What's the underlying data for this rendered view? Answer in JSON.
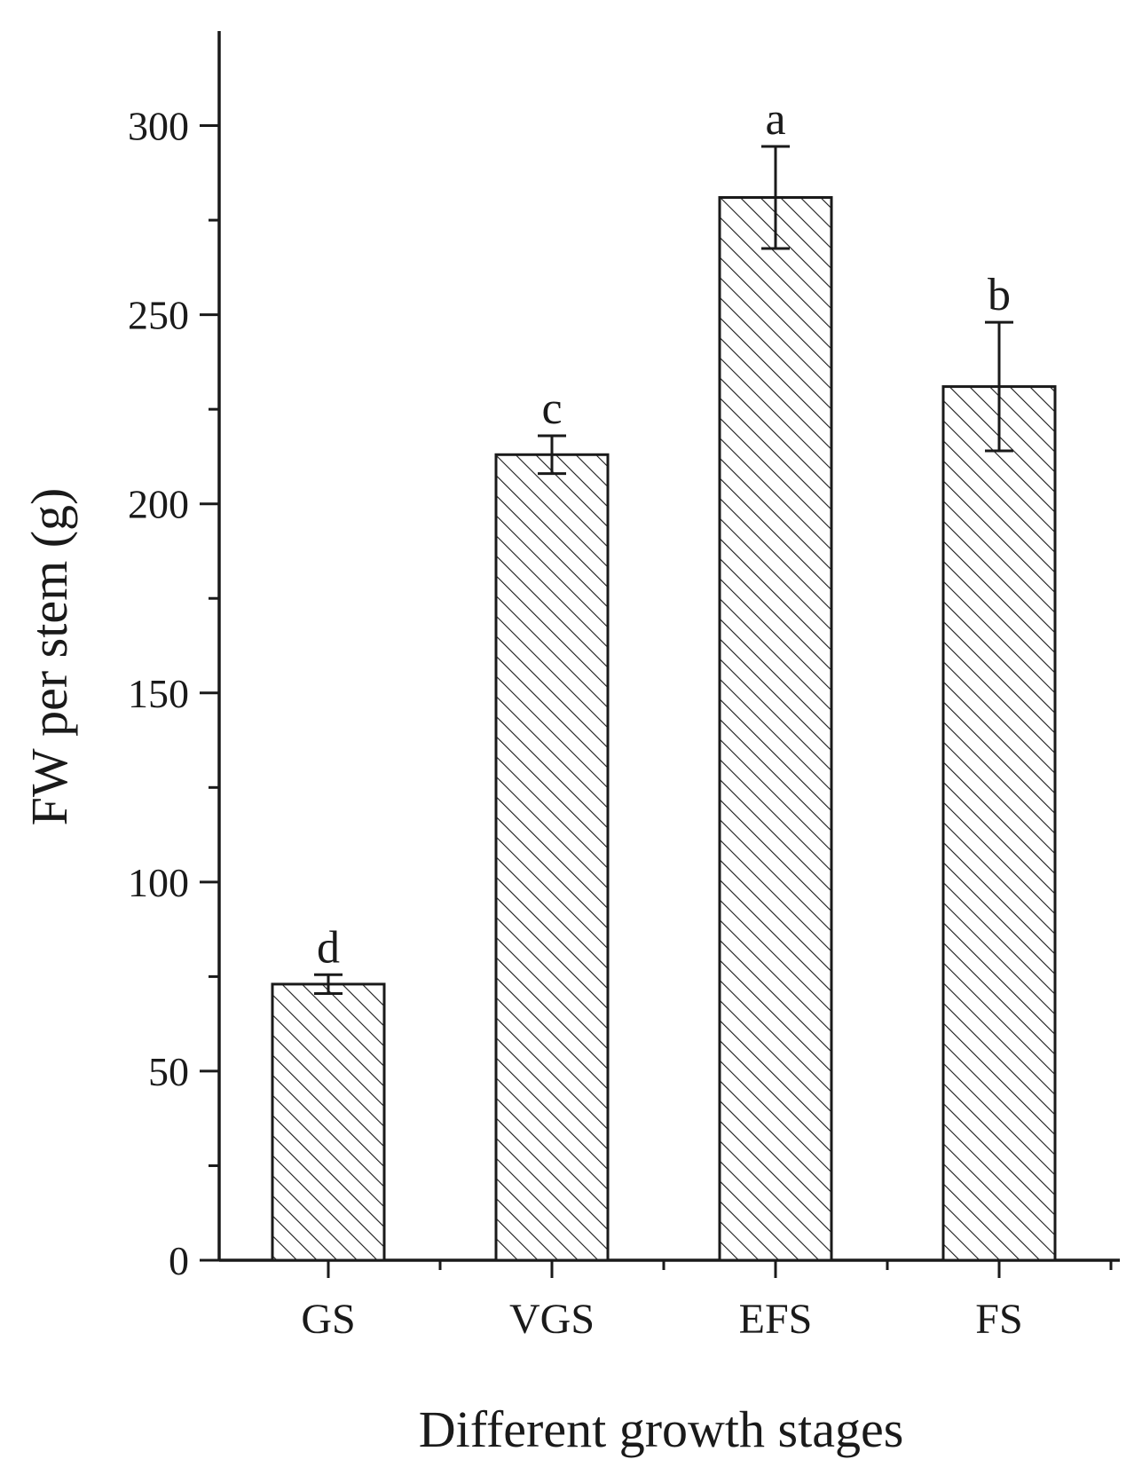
{
  "chart_data": {
    "type": "bar",
    "xlabel": "Different growth stages",
    "ylabel": "FW per stem (g)",
    "categories": [
      "GS",
      "VGS",
      "EFS",
      "FS"
    ],
    "values": [
      73,
      213,
      281,
      231
    ],
    "error": [
      2.5,
      5,
      13.5,
      17
    ],
    "significance_letters": [
      "d",
      "c",
      "a",
      "b"
    ],
    "ylim": [
      0,
      325
    ],
    "yticks": [
      0,
      50,
      100,
      150,
      200,
      250,
      300
    ],
    "ytick_labels": [
      "0",
      "50",
      "100",
      "150",
      "200",
      "250",
      "300"
    ],
    "grid": false,
    "bar_fill": "diagonal hatch",
    "colors": {
      "ink": "#1a1a1a",
      "background": "#ffffff",
      "bar_fill": "#ffffff"
    }
  }
}
